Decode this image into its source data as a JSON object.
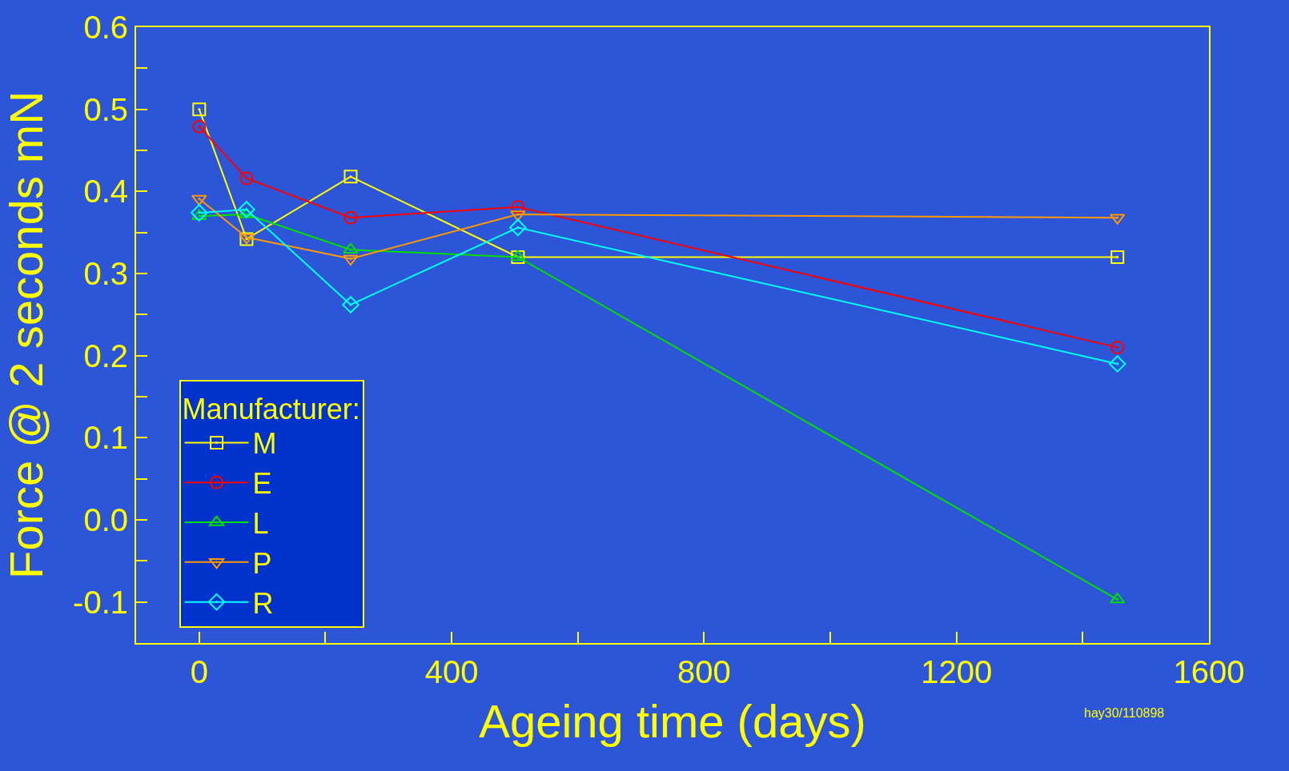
{
  "chart_data": {
    "type": "line",
    "xlabel": "Ageing time (days)",
    "ylabel": "Force @ 2 seconds mN",
    "legend_title": "Manufacturer:",
    "x": [
      0,
      75,
      240,
      505,
      1455
    ],
    "series": [
      {
        "name": "M",
        "color": "#ffff00",
        "marker": "square",
        "values": [
          0.5,
          0.342,
          0.418,
          0.32,
          0.32
        ]
      },
      {
        "name": "E",
        "color": "#ff0000",
        "marker": "circle",
        "values": [
          0.479,
          0.416,
          0.368,
          0.381,
          0.21
        ]
      },
      {
        "name": "L",
        "color": "#00e000",
        "marker": "triangle",
        "values": [
          0.37,
          0.372,
          0.329,
          0.32,
          -0.097
        ]
      },
      {
        "name": "P",
        "color": "#ff9900",
        "marker": "triangle-down",
        "values": [
          0.391,
          0.344,
          0.318,
          0.372,
          0.368
        ]
      },
      {
        "name": "R",
        "color": "#00ffff",
        "marker": "diamond",
        "values": [
          0.374,
          0.378,
          0.262,
          0.356,
          0.19
        ]
      }
    ],
    "xlim": [
      -100,
      1600
    ],
    "xticks": [
      0,
      {
        "value": 200,
        "label": null
      },
      400,
      {
        "value": 600,
        "label": null
      },
      800,
      {
        "value": 1000,
        "label": null
      },
      1200,
      {
        "value": 1400,
        "label": null
      },
      1600
    ],
    "ylim": [
      -0.15,
      0.6
    ],
    "yticks": [
      {
        "value": -0.1,
        "label": "-0.1"
      },
      {
        "value": -0.05,
        "label": null
      },
      {
        "value": 0,
        "label": "0.0"
      },
      {
        "value": 0.05,
        "label": null
      },
      0.1,
      {
        "value": 0.15,
        "label": null
      },
      0.2,
      {
        "value": 0.25,
        "label": null
      },
      0.3,
      {
        "value": 0.35,
        "label": null
      },
      0.4,
      {
        "value": 0.45,
        "label": null
      },
      0.5,
      {
        "value": 0.55,
        "label": null
      },
      0.6
    ],
    "legend": "bottom left",
    "grid": false,
    "line_style": "solid",
    "annotations": [
      "hay30/110898"
    ]
  }
}
